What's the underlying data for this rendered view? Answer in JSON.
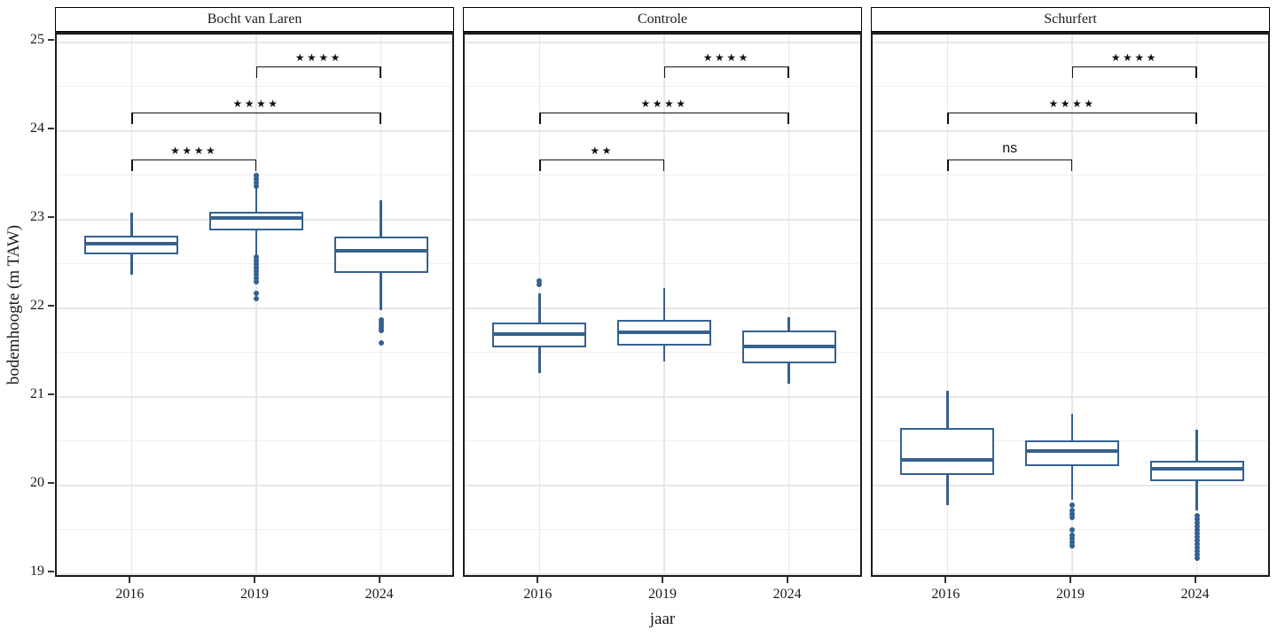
{
  "chart_data": {
    "type": "boxplot",
    "ylabel": "bodemhoogte (m TAW)",
    "xlabel": "jaar",
    "yticks": [
      25,
      24,
      23,
      22,
      21,
      20,
      19
    ],
    "ylim": [
      18.94,
      25.09
    ],
    "categories": [
      "2016",
      "2019",
      "2024"
    ],
    "grid": true,
    "box_color": "#35618f",
    "facets": [
      {
        "title": "Bocht van Laren",
        "boxes": [
          {
            "category": "2016",
            "whisker_low": 22.38,
            "q1": 22.61,
            "median": 22.73,
            "q3": 22.82,
            "whisker_high": 23.08,
            "outliers": []
          },
          {
            "category": "2019",
            "whisker_low": 22.6,
            "q1": 22.88,
            "median": 23.02,
            "q3": 23.09,
            "whisker_high": 23.36,
            "outliers": [
              23.38,
              23.42,
              23.46,
              23.5,
              22.58,
              22.54,
              22.5,
              22.46,
              22.42,
              22.38,
              22.34,
              22.3,
              22.17,
              22.11
            ]
          },
          {
            "category": "2024",
            "whisker_low": 21.98,
            "q1": 22.4,
            "median": 22.65,
            "q3": 22.81,
            "whisker_high": 23.22,
            "outliers": [
              21.87,
              21.84,
              21.81,
              21.78,
              21.75,
              21.61
            ]
          }
        ],
        "comparisons": [
          {
            "group1": 0,
            "group2": 1,
            "label": "****",
            "y": 23.68
          },
          {
            "group1": 0,
            "group2": 2,
            "label": "****",
            "y": 24.21
          },
          {
            "group1": 1,
            "group2": 2,
            "label": "****",
            "y": 24.73
          }
        ]
      },
      {
        "title": "Controle",
        "boxes": [
          {
            "category": "2016",
            "whisker_low": 21.27,
            "q1": 21.56,
            "median": 21.71,
            "q3": 21.84,
            "whisker_high": 22.17,
            "outliers": [
              22.31,
              22.27
            ]
          },
          {
            "category": "2019",
            "whisker_low": 21.4,
            "q1": 21.58,
            "median": 21.73,
            "q3": 21.87,
            "whisker_high": 22.23,
            "outliers": []
          },
          {
            "category": "2024",
            "whisker_low": 21.15,
            "q1": 21.38,
            "median": 21.57,
            "q3": 21.75,
            "whisker_high": 21.9,
            "outliers": []
          }
        ],
        "comparisons": [
          {
            "group1": 0,
            "group2": 1,
            "label": "**",
            "y": 23.68
          },
          {
            "group1": 0,
            "group2": 2,
            "label": "****",
            "y": 24.21
          },
          {
            "group1": 1,
            "group2": 2,
            "label": "****",
            "y": 24.73
          }
        ]
      },
      {
        "title": "Schurfert",
        "boxes": [
          {
            "category": "2016",
            "whisker_low": 19.78,
            "q1": 20.12,
            "median": 20.29,
            "q3": 20.65,
            "whisker_high": 21.07,
            "outliers": []
          },
          {
            "category": "2019",
            "whisker_low": 19.84,
            "q1": 20.22,
            "median": 20.39,
            "q3": 20.51,
            "whisker_high": 20.81,
            "outliers": [
              19.78,
              19.72,
              19.68,
              19.64,
              19.5,
              19.44,
              19.4,
              19.36,
              19.32
            ]
          },
          {
            "category": "2024",
            "whisker_low": 19.72,
            "q1": 20.05,
            "median": 20.19,
            "q3": 20.28,
            "whisker_high": 20.63,
            "outliers": [
              19.66,
              19.62,
              19.58,
              19.54,
              19.5,
              19.46,
              19.42,
              19.38,
              19.34,
              19.3,
              19.26,
              19.22,
              19.18
            ]
          }
        ],
        "comparisons": [
          {
            "group1": 0,
            "group2": 1,
            "label": "ns",
            "y": 23.68
          },
          {
            "group1": 0,
            "group2": 2,
            "label": "****",
            "y": 24.21
          },
          {
            "group1": 1,
            "group2": 2,
            "label": "****",
            "y": 24.73
          }
        ]
      }
    ]
  }
}
